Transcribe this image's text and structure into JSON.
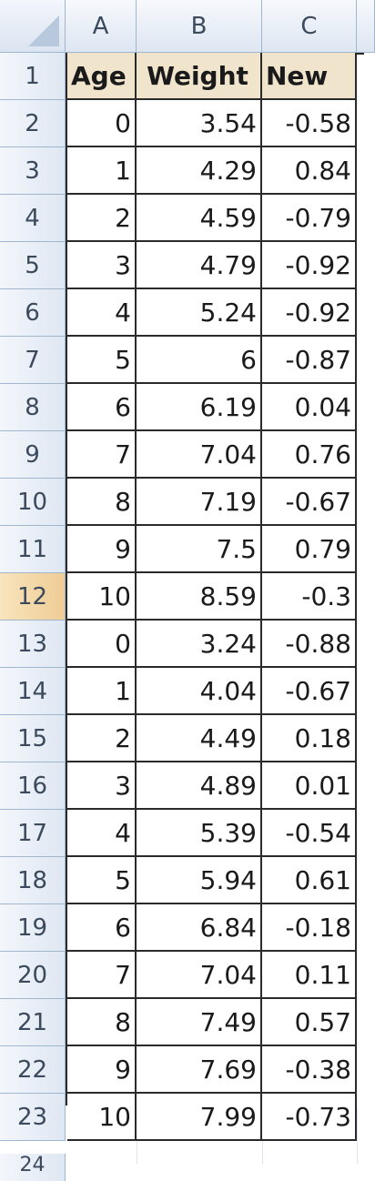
{
  "columns": [
    "A",
    "B",
    "C"
  ],
  "header_row": {
    "row_number": "1",
    "cells": [
      "Age",
      "Weight",
      "New"
    ]
  },
  "rows": [
    {
      "row_number": "2",
      "age": "0",
      "weight": "3.54",
      "new": "-0.58"
    },
    {
      "row_number": "3",
      "age": "1",
      "weight": "4.29",
      "new": "0.84"
    },
    {
      "row_number": "4",
      "age": "2",
      "weight": "4.59",
      "new": "-0.79"
    },
    {
      "row_number": "5",
      "age": "3",
      "weight": "4.79",
      "new": "-0.92"
    },
    {
      "row_number": "6",
      "age": "4",
      "weight": "5.24",
      "new": "-0.92"
    },
    {
      "row_number": "7",
      "age": "5",
      "weight": "6",
      "new": "-0.87"
    },
    {
      "row_number": "8",
      "age": "6",
      "weight": "6.19",
      "new": "0.04"
    },
    {
      "row_number": "9",
      "age": "7",
      "weight": "7.04",
      "new": "0.76"
    },
    {
      "row_number": "10",
      "age": "8",
      "weight": "7.19",
      "new": "-0.67"
    },
    {
      "row_number": "11",
      "age": "9",
      "weight": "7.5",
      "new": "0.79"
    },
    {
      "row_number": "12",
      "age": "10",
      "weight": "8.59",
      "new": "-0.3"
    },
    {
      "row_number": "13",
      "age": "0",
      "weight": "3.24",
      "new": "-0.88"
    },
    {
      "row_number": "14",
      "age": "1",
      "weight": "4.04",
      "new": "-0.67"
    },
    {
      "row_number": "15",
      "age": "2",
      "weight": "4.49",
      "new": "0.18"
    },
    {
      "row_number": "16",
      "age": "3",
      "weight": "4.89",
      "new": "0.01"
    },
    {
      "row_number": "17",
      "age": "4",
      "weight": "5.39",
      "new": "-0.54"
    },
    {
      "row_number": "18",
      "age": "5",
      "weight": "5.94",
      "new": "0.61"
    },
    {
      "row_number": "19",
      "age": "6",
      "weight": "6.84",
      "new": "-0.18"
    },
    {
      "row_number": "20",
      "age": "7",
      "weight": "7.04",
      "new": "0.11"
    },
    {
      "row_number": "21",
      "age": "8",
      "weight": "7.49",
      "new": "0.57"
    },
    {
      "row_number": "22",
      "age": "9",
      "weight": "7.69",
      "new": "-0.38"
    },
    {
      "row_number": "23",
      "age": "10",
      "weight": "7.99",
      "new": "-0.73"
    }
  ],
  "partial_row_number": "24",
  "active_row_number": "12",
  "colors": {
    "header_fill": "#f0e4cc",
    "active_row_header": "#efcc95",
    "grid_border": "#2a2a2a",
    "heading_text": "#3b4a5c"
  },
  "icons": {
    "corner": "select-all-triangle-icon"
  }
}
